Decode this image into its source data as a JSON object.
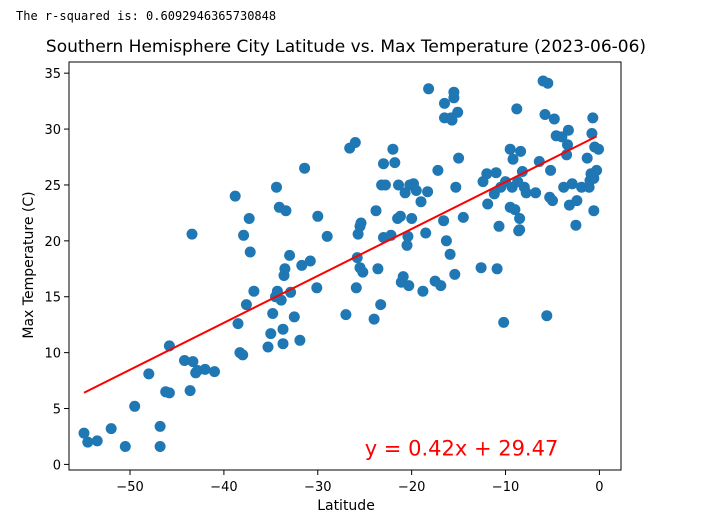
{
  "output_text": "The r-squared is: 0.6092946365730848",
  "chart_data": {
    "type": "scatter",
    "title": "Southern Hemisphere City Latitude vs. Max Temperature (2023-06-06)",
    "xlabel": "Latitude",
    "ylabel": "Max Temperature (C)",
    "xlim": [
      -56.5,
      2.3
    ],
    "ylim": [
      -0.5,
      36
    ],
    "xticks": [
      -50,
      -40,
      -30,
      -20,
      -10,
      0
    ],
    "yticks": [
      0,
      5,
      10,
      15,
      20,
      25,
      30,
      35
    ],
    "grid": false,
    "point_color": "#1f77b4",
    "line_color": "#ff0000",
    "regression": {
      "slope": 0.42,
      "intercept": 29.47,
      "x_range": [
        -54.9,
        -0.3
      ]
    },
    "annotation": {
      "text": "y = 0.42x + 29.47",
      "x": -25,
      "y": 0.8
    },
    "points": [
      [
        -54.9,
        2.8
      ],
      [
        -54.5,
        2.0
      ],
      [
        -53.5,
        2.1
      ],
      [
        -52.0,
        3.2
      ],
      [
        -50.5,
        1.6
      ],
      [
        -49.5,
        5.2
      ],
      [
        -48.0,
        8.1
      ],
      [
        -46.8,
        1.6
      ],
      [
        -46.8,
        3.4
      ],
      [
        -46.2,
        6.5
      ],
      [
        -45.8,
        6.4
      ],
      [
        -45.8,
        10.6
      ],
      [
        -44.2,
        9.3
      ],
      [
        -43.6,
        6.6
      ],
      [
        -43.3,
        9.2
      ],
      [
        -43.0,
        8.2
      ],
      [
        -42.8,
        8.4
      ],
      [
        -42.0,
        8.5
      ],
      [
        -41.0,
        8.3
      ],
      [
        -43.4,
        20.6
      ],
      [
        -38.8,
        24.0
      ],
      [
        -38.5,
        12.6
      ],
      [
        -38.3,
        10.0
      ],
      [
        -38.0,
        9.8
      ],
      [
        -37.9,
        20.5
      ],
      [
        -37.6,
        14.3
      ],
      [
        -37.3,
        22.0
      ],
      [
        -37.2,
        19.0
      ],
      [
        -36.8,
        15.5
      ],
      [
        -35.3,
        10.5
      ],
      [
        -35.0,
        11.7
      ],
      [
        -34.8,
        13.5
      ],
      [
        -34.5,
        15.0
      ],
      [
        -34.3,
        15.5
      ],
      [
        -34.4,
        24.8
      ],
      [
        -34.1,
        23.0
      ],
      [
        -33.9,
        14.7
      ],
      [
        -33.7,
        12.1
      ],
      [
        -33.7,
        10.8
      ],
      [
        -33.6,
        16.9
      ],
      [
        -33.5,
        17.5
      ],
      [
        -33.4,
        22.7
      ],
      [
        -33.0,
        18.7
      ],
      [
        -32.9,
        15.4
      ],
      [
        -32.5,
        13.2
      ],
      [
        -31.9,
        11.1
      ],
      [
        -31.7,
        17.8
      ],
      [
        -31.4,
        26.5
      ],
      [
        -30.8,
        18.2
      ],
      [
        -30.1,
        15.8
      ],
      [
        -30.0,
        22.2
      ],
      [
        -29.0,
        20.4
      ],
      [
        -27.0,
        13.4
      ],
      [
        -26.6,
        28.3
      ],
      [
        -26.0,
        28.8
      ],
      [
        -25.9,
        15.8
      ],
      [
        -25.8,
        18.5
      ],
      [
        -25.7,
        20.6
      ],
      [
        -25.5,
        17.6
      ],
      [
        -25.5,
        21.3
      ],
      [
        -25.4,
        21.6
      ],
      [
        -25.2,
        17.2
      ],
      [
        -24.0,
        13.0
      ],
      [
        -23.8,
        22.7
      ],
      [
        -23.6,
        17.5
      ],
      [
        -23.3,
        14.3
      ],
      [
        -23.2,
        25.0
      ],
      [
        -23.0,
        20.3
      ],
      [
        -23.0,
        26.9
      ],
      [
        -22.8,
        25.0
      ],
      [
        -22.2,
        20.5
      ],
      [
        -22.0,
        28.2
      ],
      [
        -21.8,
        27.0
      ],
      [
        -21.5,
        22.0
      ],
      [
        -21.4,
        25.0
      ],
      [
        -21.2,
        22.2
      ],
      [
        -21.1,
        16.3
      ],
      [
        -20.9,
        16.8
      ],
      [
        -20.7,
        24.3
      ],
      [
        -20.5,
        19.6
      ],
      [
        -20.4,
        20.4
      ],
      [
        -20.3,
        16.0
      ],
      [
        -20.2,
        25.0
      ],
      [
        -20.0,
        22.0
      ],
      [
        -19.8,
        25.1
      ],
      [
        -19.5,
        24.5
      ],
      [
        -19.0,
        23.5
      ],
      [
        -18.8,
        15.5
      ],
      [
        -18.5,
        20.7
      ],
      [
        -18.3,
        24.4
      ],
      [
        -18.2,
        33.6
      ],
      [
        -17.5,
        16.4
      ],
      [
        -17.2,
        26.3
      ],
      [
        -16.9,
        16.0
      ],
      [
        -16.6,
        21.8
      ],
      [
        -16.5,
        31.0
      ],
      [
        -16.5,
        32.3
      ],
      [
        -16.3,
        20.0
      ],
      [
        -15.9,
        18.8
      ],
      [
        -15.8,
        31.0
      ],
      [
        -15.7,
        30.8
      ],
      [
        -15.5,
        32.8
      ],
      [
        -15.5,
        33.3
      ],
      [
        -15.4,
        17.0
      ],
      [
        -15.3,
        24.8
      ],
      [
        -15.1,
        31.5
      ],
      [
        -15.0,
        27.4
      ],
      [
        -14.5,
        22.1
      ],
      [
        -12.6,
        17.6
      ],
      [
        -12.4,
        25.3
      ],
      [
        -12.0,
        26.0
      ],
      [
        -11.9,
        23.3
      ],
      [
        -11.2,
        24.2
      ],
      [
        -11.0,
        26.1
      ],
      [
        -10.9,
        17.5
      ],
      [
        -10.7,
        21.3
      ],
      [
        -10.5,
        24.8
      ],
      [
        -10.2,
        12.7
      ],
      [
        -10.0,
        25.3
      ],
      [
        -9.5,
        23.0
      ],
      [
        -9.5,
        28.2
      ],
      [
        -9.3,
        24.8
      ],
      [
        -9.2,
        27.3
      ],
      [
        -9.0,
        22.8
      ],
      [
        -8.8,
        31.8
      ],
      [
        -8.7,
        25.3
      ],
      [
        -8.6,
        20.9
      ],
      [
        -8.5,
        21.0
      ],
      [
        -8.5,
        22.0
      ],
      [
        -8.4,
        28.0
      ],
      [
        -8.2,
        26.2
      ],
      [
        -8.0,
        24.8
      ],
      [
        -7.8,
        24.3
      ],
      [
        -6.8,
        24.3
      ],
      [
        -6.4,
        27.1
      ],
      [
        -6.0,
        34.3
      ],
      [
        -5.8,
        31.3
      ],
      [
        -5.6,
        13.3
      ],
      [
        -5.5,
        34.1
      ],
      [
        -5.3,
        23.9
      ],
      [
        -5.2,
        26.3
      ],
      [
        -5.0,
        23.6
      ],
      [
        -4.8,
        30.9
      ],
      [
        -4.6,
        29.4
      ],
      [
        -4.0,
        29.3
      ],
      [
        -3.8,
        24.8
      ],
      [
        -3.5,
        27.7
      ],
      [
        -3.4,
        28.6
      ],
      [
        -3.3,
        29.9
      ],
      [
        -3.2,
        23.2
      ],
      [
        -2.9,
        25.1
      ],
      [
        -2.5,
        21.4
      ],
      [
        -2.4,
        23.6
      ],
      [
        -1.9,
        24.8
      ],
      [
        -1.3,
        27.4
      ],
      [
        -1.1,
        24.8
      ],
      [
        -1.0,
        25.4
      ],
      [
        -0.9,
        26.0
      ],
      [
        -0.8,
        29.6
      ],
      [
        -0.7,
        31.0
      ],
      [
        -0.6,
        22.7
      ],
      [
        -0.6,
        25.6
      ],
      [
        -0.5,
        28.4
      ],
      [
        -0.3,
        26.3
      ],
      [
        -0.1,
        28.2
      ]
    ]
  }
}
